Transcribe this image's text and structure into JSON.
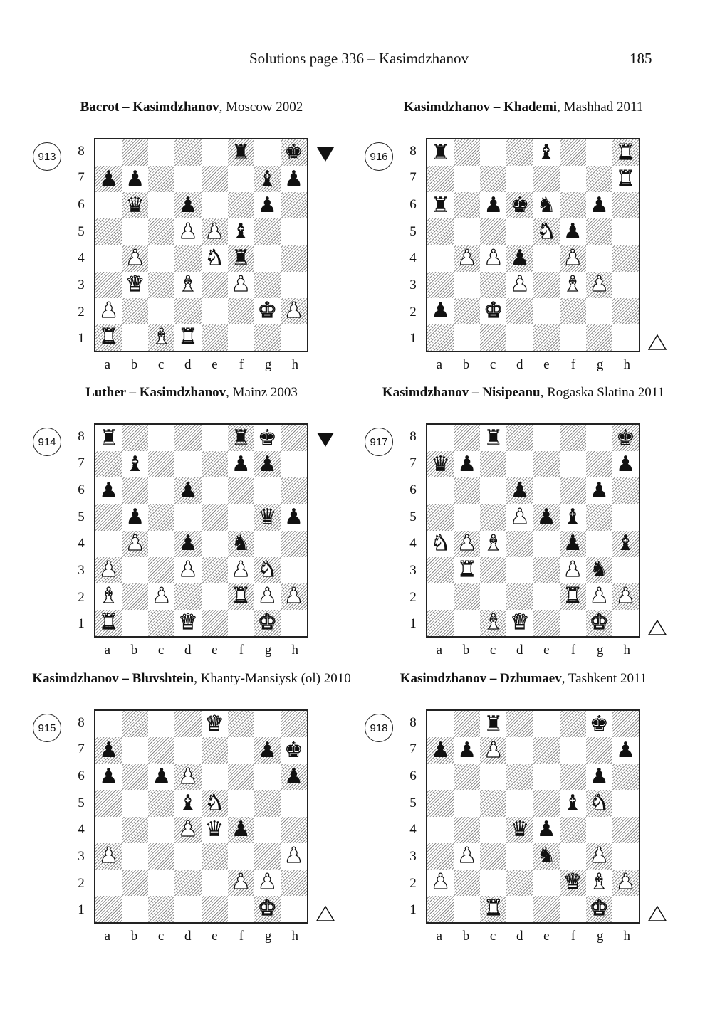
{
  "header": {
    "title": "Solutions page 336 – Kasimdzhanov",
    "page_number": "185"
  },
  "files": [
    "a",
    "b",
    "c",
    "d",
    "e",
    "f",
    "g",
    "h"
  ],
  "ranks": [
    "8",
    "7",
    "6",
    "5",
    "4",
    "3",
    "2",
    "1"
  ],
  "diagrams": [
    {
      "number": "913",
      "players": "Bacrot – Kasimdzhanov",
      "event": ", Moscow 2002",
      "to_move": "black",
      "position": [
        "5r1k",
        "pp4bp",
        "1q1p2p1",
        "3PPb2",
        "1P2Nr2",
        "1Q1B1P2",
        "P5KP",
        "R1BR4"
      ]
    },
    {
      "number": "916",
      "players": "Kasimdzhanov – Khademi",
      "event": ", Mashhad 2011",
      "to_move": "white",
      "position": [
        "r3b2R",
        "7R",
        "r1pkn1p1",
        "4Np2",
        "1PPp1P2",
        "3P1BP1",
        "p1K5",
        "8"
      ]
    },
    {
      "number": "914",
      "players": "Luther – Kasimdzhanov",
      "event": ", Mainz 2003",
      "to_move": "black",
      "position": [
        "r4rk1",
        "1b3pp1",
        "p2p4",
        "1p4qp",
        "1P1p1n2",
        "P2P1PN1",
        "B1P2RPP",
        "R2Q2K1"
      ]
    },
    {
      "number": "917",
      "players": "Kasimdzhanov – Nisipeanu",
      "event": ", Rogaska Slatina 2011",
      "to_move": "white",
      "position": [
        "2r4k",
        "qp5p",
        "3p2p1",
        "3Ppb2",
        "NPB2p1b",
        "1R3Pn1",
        "5RPP",
        "2BQ2K1"
      ]
    },
    {
      "number": "915",
      "players": "Kasimdzhanov – Bluvshtein",
      "event": ", Khanty-Mansiysk (ol) 2010",
      "to_move": "white",
      "position": [
        "4Q3",
        "p5pk",
        "p1pP3p",
        "3bN3",
        "3Pqp2",
        "P6P",
        "5PP1",
        "6K1"
      ]
    },
    {
      "number": "918",
      "players": "Kasimdzhanov – Dzhumaev",
      "event": ", Tashkent 2011",
      "to_move": "white",
      "position": [
        "2r3k1",
        "ppP4p",
        "6p1",
        "5bN1",
        "3qp3",
        "1P2n1P1",
        "P4QBP",
        "2R3K1"
      ]
    }
  ]
}
